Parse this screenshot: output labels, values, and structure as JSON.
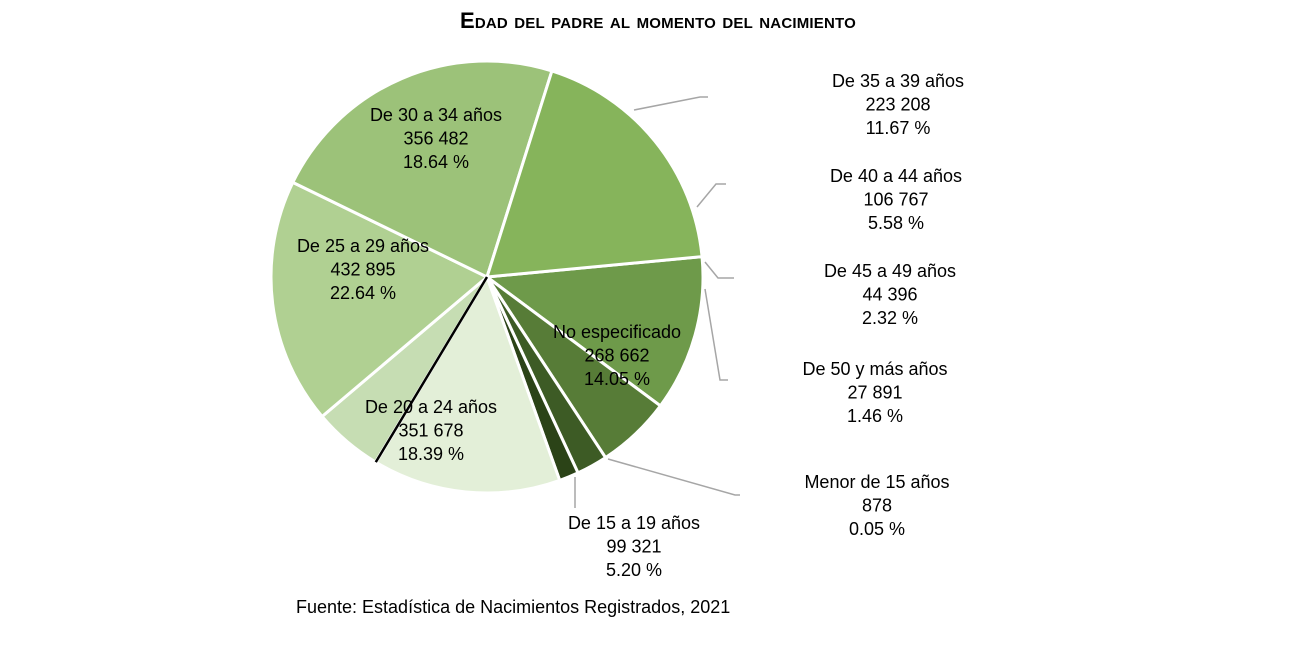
{
  "chart_data": {
    "type": "pie",
    "title": "Edad del padre al momento del nacimiento",
    "slices": [
      {
        "label": "De 35 a 39 años",
        "value": 223208,
        "percent": "11.67 %",
        "value_text": "223 208",
        "color": "#6e9a4a"
      },
      {
        "label": "De 40 a 44 años",
        "value": 106767,
        "percent": "5.58 %",
        "value_text": "106 767",
        "color": "#577c37"
      },
      {
        "label": "De 45 a 49 años",
        "value": 44396,
        "percent": "2.32 %",
        "value_text": "44 396",
        "color": "#3d5b25"
      },
      {
        "label": "De 50 y más años",
        "value": 27891,
        "percent": "1.46 %",
        "value_text": "27 891",
        "color": "#2b4317"
      },
      {
        "label": "No especificado",
        "value": 268662,
        "percent": "14.05 %",
        "value_text": "268 662",
        "color": "#e3efd8"
      },
      {
        "label": "Menor de 15 años",
        "value": 878,
        "percent": "0.05 %",
        "value_text": "878",
        "color": "#111111"
      },
      {
        "label": "De 15 a 19 años",
        "value": 99321,
        "percent": "5.20 %",
        "value_text": "99 321",
        "color": "#c6ddb3"
      },
      {
        "label": "De 20 a 24 años",
        "value": 351678,
        "percent": "18.39 %",
        "value_text": "351 678",
        "color": "#b0d092"
      },
      {
        "label": "De 25 a 29 años",
        "value": 432895,
        "percent": "22.64 %",
        "value_text": "432 895",
        "color": "#9cc279"
      },
      {
        "label": "De 30 a 34 años",
        "value": 356482,
        "percent": "18.64 %",
        "value_text": "356 482",
        "color": "#86b45b"
      }
    ],
    "legend": "none"
  },
  "source": "Fuente: Estadística de Nacimientos Registrados, 2021"
}
